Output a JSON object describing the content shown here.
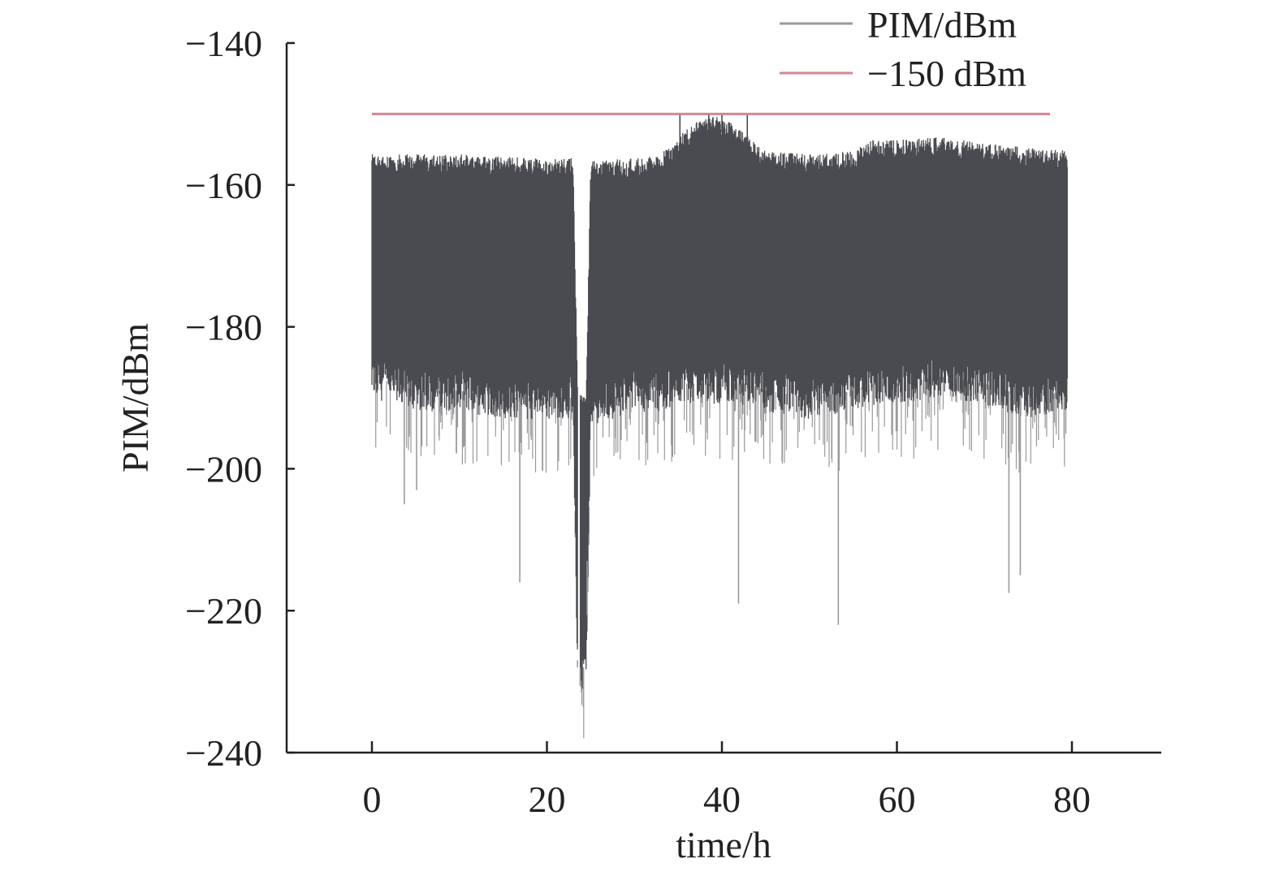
{
  "chart_data": {
    "type": "line",
    "xlabel": "time/h",
    "ylabel": "PIM/dBm",
    "xlim": [
      -10,
      90
    ],
    "ylim": [
      -240,
      -140
    ],
    "xticks": [
      0,
      20,
      40,
      60,
      80
    ],
    "yticks": [
      -140,
      -160,
      -180,
      -200,
      -220,
      -240
    ],
    "xtick_labels": [
      "0",
      "20",
      "40",
      "60",
      "80"
    ],
    "ytick_labels": [
      "−140",
      "−160",
      "−180",
      "−200",
      "−220",
      "−240"
    ],
    "grid": false,
    "legend_position": "top-right",
    "series": [
      {
        "name": "PIM/dBm",
        "color": "#4a4b50",
        "spike_color": "#9a9a9c",
        "x_range": [
          0,
          79.5
        ],
        "envelope": {
          "x": [
            0,
            5,
            10,
            15,
            20,
            23,
            23.5,
            24.5,
            25,
            30,
            33,
            35,
            37,
            39,
            41,
            43,
            45,
            50,
            55,
            57,
            60,
            65,
            70,
            75,
            79.5
          ],
          "upper": [
            -157.5,
            -157.5,
            -157.5,
            -157.8,
            -158,
            -158,
            -191,
            -191,
            -158.5,
            -158,
            -157.5,
            -155,
            -153,
            -152,
            -153,
            -155,
            -157,
            -157.5,
            -157,
            -155.5,
            -155.5,
            -155,
            -156,
            -156.5,
            -157
          ],
          "lower": [
            -187,
            -189,
            -189,
            -190,
            -190,
            -190,
            -228,
            -228,
            -191,
            -189,
            -189,
            -188,
            -188,
            -188,
            -188,
            -188,
            -189,
            -190,
            -189,
            -188,
            -188,
            -187,
            -188,
            -190,
            -189
          ]
        },
        "gap": [
          23.5,
          23.8
        ],
        "notable_spikes": [
          {
            "x": 3.7,
            "y": -205
          },
          {
            "x": 5.1,
            "y": -203
          },
          {
            "x": 16.9,
            "y": -216
          },
          {
            "x": 23.5,
            "y": -227
          },
          {
            "x": 23.8,
            "y": -230.5
          },
          {
            "x": 24.6,
            "y": -213
          },
          {
            "x": 35.2,
            "y": -150
          },
          {
            "x": 38.5,
            "y": -150
          },
          {
            "x": 40.0,
            "y": -150
          },
          {
            "x": 41.9,
            "y": -219
          },
          {
            "x": 42.9,
            "y": -150
          },
          {
            "x": 53.3,
            "y": -222
          },
          {
            "x": 72.8,
            "y": -217.5
          },
          {
            "x": 74.1,
            "y": -215
          }
        ]
      },
      {
        "name": "−150 dBm",
        "color": "#d6868f",
        "x": [
          0,
          77.5
        ],
        "y": [
          -150,
          -150
        ]
      }
    ]
  }
}
